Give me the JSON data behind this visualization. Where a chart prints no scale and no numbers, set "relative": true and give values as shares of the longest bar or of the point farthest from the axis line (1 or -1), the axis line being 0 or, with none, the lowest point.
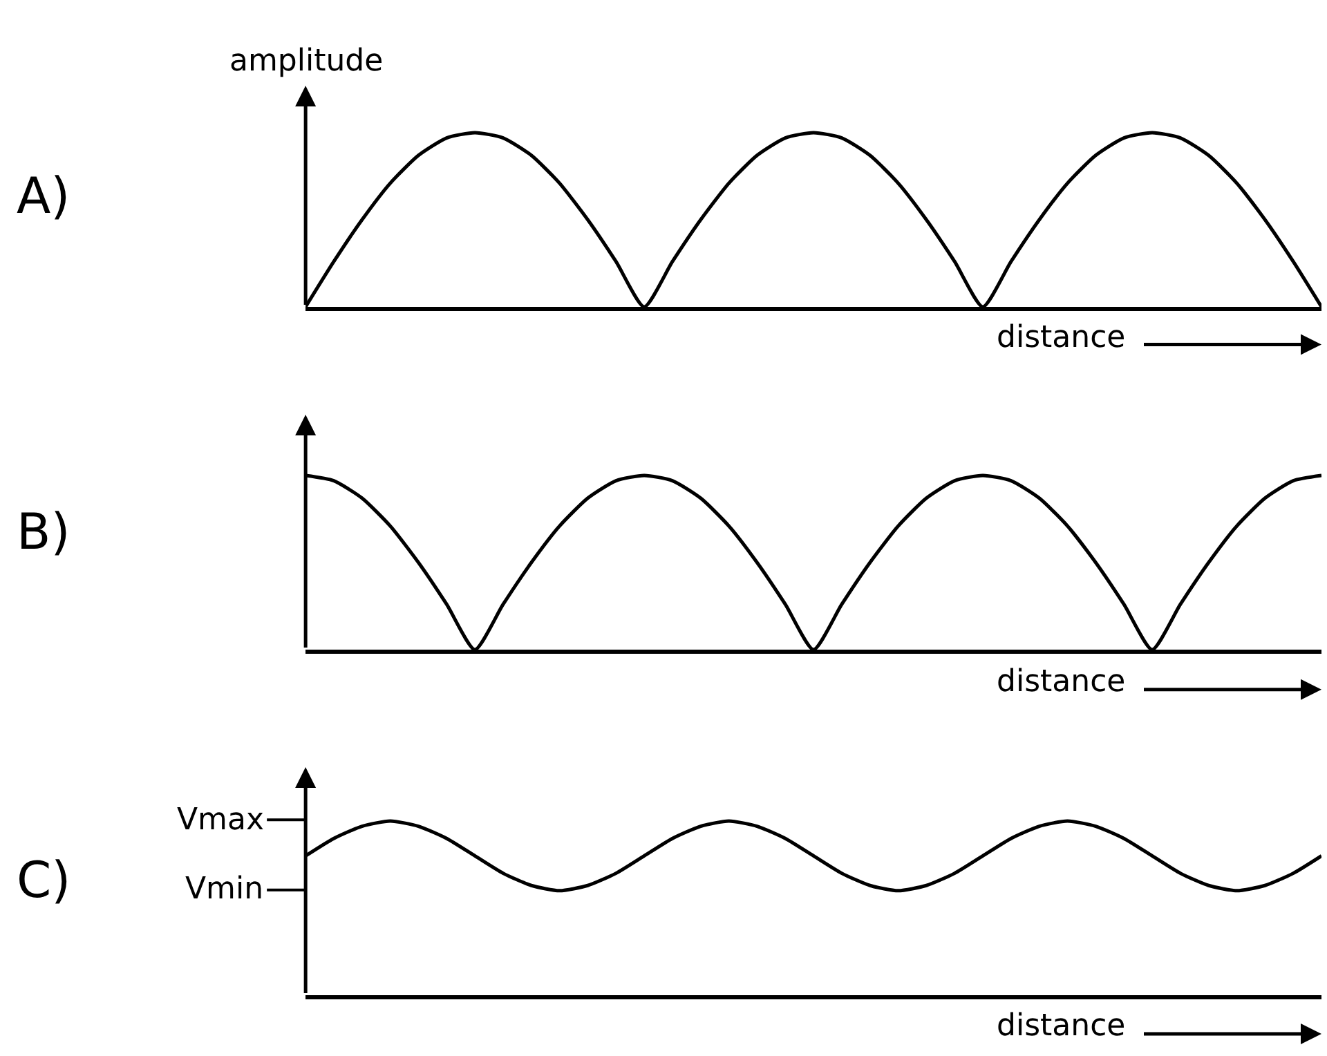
{
  "chart_data": [
    {
      "type": "line",
      "title": "A)",
      "xlabel": "distance",
      "ylabel": "amplitude",
      "relative": true,
      "categories": [
        null,
        null,
        null,
        null,
        null,
        null,
        null,
        null,
        null,
        null,
        null,
        null,
        null,
        null,
        null,
        null,
        null,
        null,
        null,
        null,
        null,
        null,
        null,
        null,
        null,
        null,
        null,
        null,
        null,
        null,
        null,
        null,
        null,
        null,
        null,
        null,
        null
      ],
      "series": [
        {
          "color": "#000000",
          "values": [
            0,
            0.26,
            0.5,
            0.71,
            0.87,
            0.97,
            1,
            0.97,
            0.87,
            0.71,
            0.5,
            0.26,
            0,
            0.26,
            0.5,
            0.71,
            0.87,
            0.97,
            1,
            0.97,
            0.87,
            0.71,
            0.5,
            0.26,
            0,
            0.26,
            0.5,
            0.71,
            0.87,
            0.97,
            1,
            0.97,
            0.87,
            0.71,
            0.5,
            0.26,
            0
          ]
        }
      ]
    },
    {
      "type": "line",
      "title": "B)",
      "xlabel": "distance",
      "relative": true,
      "categories": [
        null,
        null,
        null,
        null,
        null,
        null,
        null,
        null,
        null,
        null,
        null,
        null,
        null,
        null,
        null,
        null,
        null,
        null,
        null,
        null,
        null,
        null,
        null,
        null,
        null,
        null,
        null,
        null,
        null,
        null,
        null,
        null,
        null,
        null,
        null,
        null,
        null
      ],
      "series": [
        {
          "color": "#000000",
          "values": [
            1,
            0.97,
            0.87,
            0.71,
            0.5,
            0.26,
            0,
            0.26,
            0.5,
            0.71,
            0.87,
            0.97,
            1,
            0.97,
            0.87,
            0.71,
            0.5,
            0.26,
            0,
            0.26,
            0.5,
            0.71,
            0.87,
            0.97,
            1,
            0.97,
            0.87,
            0.71,
            0.5,
            0.26,
            0,
            0.26,
            0.5,
            0.71,
            0.87,
            0.97,
            1
          ]
        }
      ]
    },
    {
      "type": "line",
      "title": "C)",
      "xlabel": "distance",
      "relative": true,
      "categories": [
        null,
        null,
        null,
        null,
        null,
        null,
        null,
        null,
        null,
        null,
        null,
        null,
        null,
        null,
        null,
        null,
        null,
        null,
        null,
        null,
        null,
        null,
        null,
        null,
        null,
        null,
        null,
        null,
        null,
        null,
        null,
        null,
        null,
        null,
        null,
        null,
        null
      ],
      "series": [
        {
          "color": "#000000",
          "values": [
            0.8,
            0.9,
            0.97,
            1,
            0.97,
            0.9,
            0.8,
            0.7,
            0.63,
            0.6,
            0.63,
            0.7,
            0.8,
            0.9,
            0.97,
            1,
            0.97,
            0.9,
            0.8,
            0.7,
            0.63,
            0.6,
            0.63,
            0.7,
            0.8,
            0.9,
            0.97,
            1,
            0.97,
            0.9,
            0.8,
            0.7,
            0.63,
            0.6,
            0.63,
            0.7,
            0.8
          ]
        }
      ],
      "annotations": [
        "Vmax",
        "Vmin"
      ]
    }
  ]
}
